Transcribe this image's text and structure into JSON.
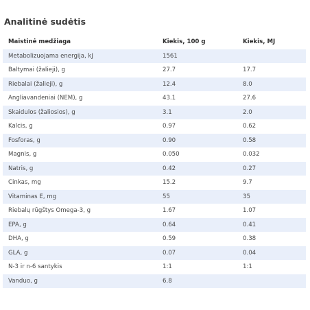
{
  "title": "Analitinė sudėtis",
  "headers": [
    "Maistinė medžiaga",
    "Kiekis, 100 g",
    "Kiekis, MJ"
  ],
  "rows": [
    [
      "Metabolizuojama energija, kJ",
      "1561",
      ""
    ],
    [
      "Baltymai (žalieji), g",
      "27.7",
      "17.7"
    ],
    [
      "Riebalai (žalieji), g",
      "12.4",
      "8.0"
    ],
    [
      "Angliavandeniai (NEM), g",
      "43.1",
      "27.6"
    ],
    [
      "Skaidulos (žaliosios),  g",
      "3.1",
      "2.0"
    ],
    [
      "Kalcis, g",
      "0.97",
      "0.62"
    ],
    [
      "Fosforas, g",
      "0.90",
      "0.58"
    ],
    [
      "Magnis, g",
      "0.050",
      "0.032"
    ],
    [
      "Natris, g",
      "0.42",
      "0.27"
    ],
    [
      "Cinkas, mg",
      "15.2",
      "9.7"
    ],
    [
      "Vitaminas E, mg",
      "55",
      "35"
    ],
    [
      "Riebalų rūgštys Omega-3, g",
      "1.67",
      "1.07"
    ],
    [
      "EPA, g",
      "0.64",
      "0.41"
    ],
    [
      "DHA, g",
      "0.59",
      "0.38"
    ],
    [
      "GLA, g",
      "0.07",
      "0.04"
    ],
    [
      "N-3 ir n-6 santykis",
      "1:1",
      "1:1"
    ],
    [
      "Vanduo, g",
      "6.8",
      ""
    ]
  ],
  "colors": {
    "stripe": "#e9effa",
    "text": "#4a4a4a"
  }
}
